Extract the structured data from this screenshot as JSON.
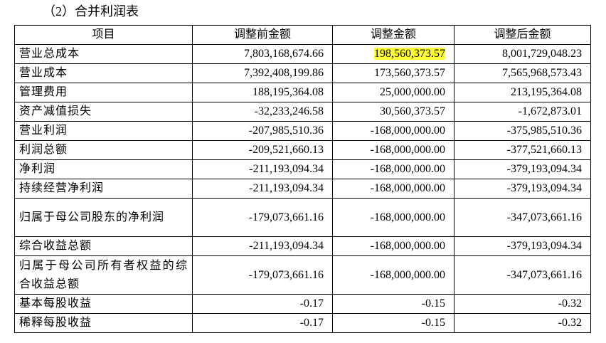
{
  "title": "（2）合并利润表",
  "table": {
    "header": [
      "项目",
      "调整前金额",
      "调整金额",
      "调整后金额"
    ],
    "rows": [
      [
        "营业总成本",
        "7,803,168,674.66",
        "198,560,373.57",
        "8,001,729,048.23"
      ],
      [
        "营业成本",
        "7,392,408,199.86",
        "173,560,373.57",
        "7,565,968,573.43"
      ],
      [
        "管理费用",
        "188,195,364.08",
        "25,000,000.00",
        "213,195,364.08"
      ],
      [
        "资产减值损失",
        "-32,233,246.58",
        "30,560,373.57",
        "-1,672,873.01"
      ],
      [
        "营业利润",
        "-207,985,510.36",
        "-168,000,000.00",
        "-375,985,510.36"
      ],
      [
        "利润总额",
        "-209,521,660.13",
        "-168,000,000.00",
        "-377,521,660.13"
      ],
      [
        "净利润",
        "-211,193,094.34",
        "-168,000,000.00",
        "-379,193,094.34"
      ],
      [
        "持续经营净利润",
        "-211,193,094.34",
        "-168,000,000.00",
        "-379,193,094.34"
      ],
      [
        "归属于母公司股东的净利润",
        "-179,073,661.16",
        "-168,000,000.00",
        "-347,073,661.16"
      ],
      [
        "综合收益总额",
        "-211,193,094.34",
        "-168,000,000.00",
        "-379,193,094.34"
      ],
      [
        "归属于母公司所有者权益的综合收益总额",
        "-179,073,661.16",
        "-168,000,000.00",
        "-347,073,661.16"
      ],
      [
        "基本每股收益",
        "-0.17",
        "-0.15",
        "-0.32"
      ],
      [
        "稀释每股收益",
        "-0.17",
        "-0.15",
        "-0.32"
      ]
    ]
  }
}
